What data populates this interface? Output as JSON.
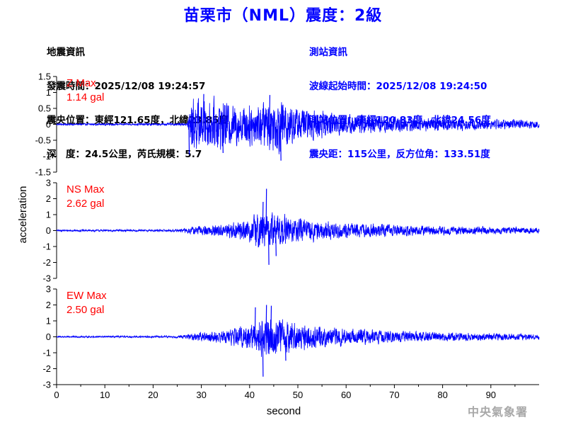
{
  "title": "苗栗市（NML）震度：2級",
  "quake_info": {
    "heading": "地震資訊",
    "time": "發震時間：2025/12/08 19:24:57",
    "epicenter": "震央位置：東經121.65度，北緯23.85度",
    "depth_magnitude": "深　度：24.5公里，芮氏規模：5.7"
  },
  "station_info": {
    "heading": "測站資訊",
    "start_time": "波線起始時間：2025/12/08 19:24:50",
    "location": "測站位置：東經120.83度，北緯24.56度",
    "distance": "震央距：115公里，反方位角：133.51度"
  },
  "agency": "中央氣象署",
  "colors": {
    "title": "#0000ff",
    "trace": "#0000ff",
    "max_label": "#ff0000",
    "station_info": "#0000ff",
    "agency": "#a8a8a8"
  },
  "chart_data": {
    "type": "line",
    "xlabel": "second",
    "ylabel": "acceleration",
    "xlim": [
      0,
      100
    ],
    "xticks": [
      0,
      10,
      20,
      30,
      40,
      50,
      60,
      70,
      80,
      90
    ],
    "panels": [
      {
        "name": "Z",
        "max_label": "Z Max",
        "max_value": "1.14 gal",
        "ylim": [
          -1.5,
          1.5
        ],
        "yticks": [
          1.5,
          1,
          0.5,
          0,
          -0.5,
          -1,
          -1.5
        ],
        "ytick_labels": [
          "1.5",
          "1",
          "0.5",
          "0",
          "-0.5",
          "-1",
          "-1.5"
        ],
        "envelope": {
          "t": [
            0,
            27,
            28,
            30,
            33,
            37,
            42,
            46,
            50,
            55,
            60,
            70,
            80,
            90,
            100
          ],
          "a": [
            0.03,
            0.04,
            0.95,
            0.8,
            0.85,
            0.7,
            0.75,
            0.95,
            0.6,
            0.45,
            0.35,
            0.28,
            0.22,
            0.18,
            0.15
          ]
        },
        "spikes": [
          {
            "t": 27.5,
            "v": -0.95
          },
          {
            "t": 30.5,
            "v": 0.95
          },
          {
            "t": 46.5,
            "v": -1.14
          },
          {
            "t": 44.2,
            "v": 0.92
          },
          {
            "t": 34.5,
            "v": -0.9
          }
        ]
      },
      {
        "name": "NS",
        "max_label": "NS Max",
        "max_value": "2.62 gal",
        "ylim": [
          -3,
          3
        ],
        "yticks": [
          3,
          2,
          1,
          0,
          -1,
          -2,
          -3
        ],
        "ytick_labels": [
          "3",
          "2",
          "1",
          "0",
          "-1",
          "-2",
          "-3"
        ],
        "envelope": {
          "t": [
            0,
            25,
            30,
            35,
            40,
            42,
            45,
            50,
            55,
            60,
            70,
            80,
            90,
            100
          ],
          "a": [
            0.06,
            0.08,
            0.35,
            0.45,
            0.8,
            1.3,
            1.25,
            0.8,
            0.65,
            0.5,
            0.4,
            0.3,
            0.25,
            0.2
          ]
        },
        "spikes": [
          {
            "t": 43.5,
            "v": 2.62
          },
          {
            "t": 44.0,
            "v": -2.15
          },
          {
            "t": 42.8,
            "v": 1.8
          },
          {
            "t": 45.5,
            "v": -1.6
          }
        ]
      },
      {
        "name": "EW",
        "max_label": "EW Max",
        "max_value": "2.50 gal",
        "ylim": [
          -3,
          3
        ],
        "yticks": [
          3,
          2,
          1,
          0,
          -1,
          -2,
          -3
        ],
        "ytick_labels": [
          "3",
          "2",
          "1",
          "0",
          "-1",
          "-2",
          "-3"
        ],
        "envelope": {
          "t": [
            0,
            25,
            30,
            35,
            40,
            42,
            45,
            50,
            55,
            60,
            70,
            80,
            90,
            100
          ],
          "a": [
            0.05,
            0.07,
            0.3,
            0.45,
            0.9,
            1.4,
            1.3,
            0.95,
            0.75,
            0.55,
            0.4,
            0.3,
            0.25,
            0.2
          ]
        },
        "spikes": [
          {
            "t": 42.8,
            "v": -2.5
          },
          {
            "t": 43.5,
            "v": 2.0
          },
          {
            "t": 41.2,
            "v": 1.85
          },
          {
            "t": 44.5,
            "v": 1.95
          },
          {
            "t": 47.5,
            "v": -1.5
          }
        ]
      }
    ]
  }
}
